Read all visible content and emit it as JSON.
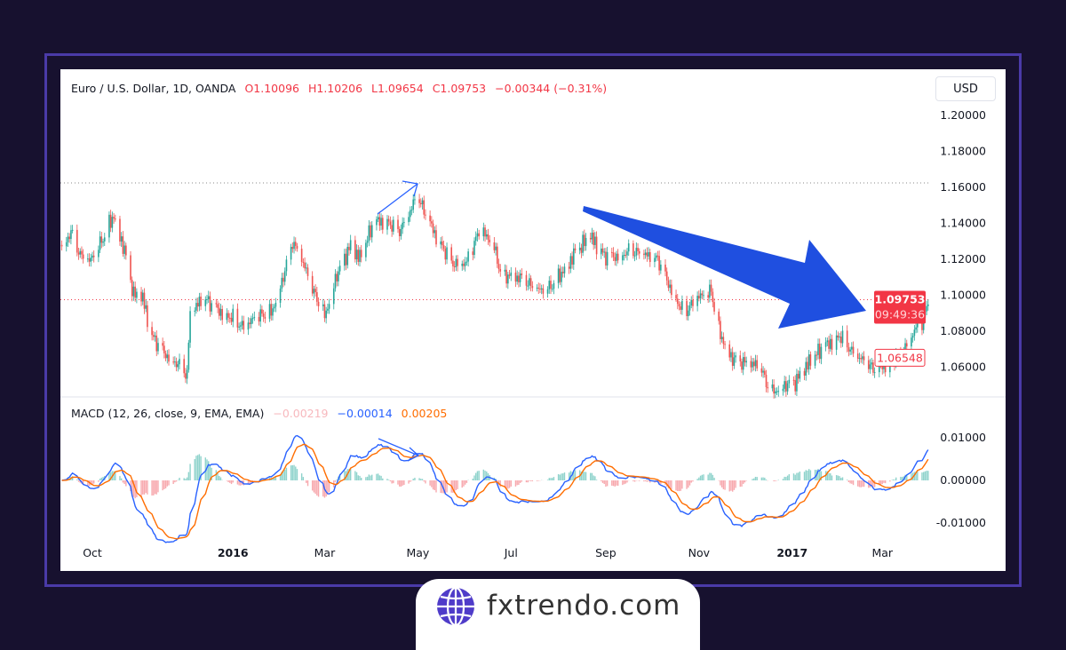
{
  "legend": {
    "symbol": "Euro / U.S. Dollar, 1D, OANDA",
    "open": "O1.10096",
    "high": "H1.10206",
    "low": "L1.09654",
    "close": "C1.09753",
    "change": "−0.00344 (−0.31%)"
  },
  "macd_legend": {
    "label": "MACD (12, 26, close, 9, EMA, EMA)",
    "histogram": "−0.00219",
    "macd": "−0.00014",
    "signal": "0.00205"
  },
  "currency": "USD",
  "price_axis": [
    "1.20000",
    "1.18000",
    "1.16000",
    "1.14000",
    "1.12000",
    "1.10000",
    "1.08000",
    "1.06000"
  ],
  "macd_axis": [
    "0.01000",
    "0.00000",
    "-0.01000"
  ],
  "time_axis": [
    {
      "label": "Oct",
      "bold": false,
      "date": "2015-10-01"
    },
    {
      "label": "2016",
      "bold": true,
      "date": "2016-01-01"
    },
    {
      "label": "Mar",
      "bold": false,
      "date": "2016-03-01"
    },
    {
      "label": "May",
      "bold": false,
      "date": "2016-05-01"
    },
    {
      "label": "Jul",
      "bold": false,
      "date": "2016-07-01"
    },
    {
      "label": "Sep",
      "bold": false,
      "date": "2016-09-01"
    },
    {
      "label": "Nov",
      "bold": false,
      "date": "2016-11-01"
    },
    {
      "label": "2017",
      "bold": true,
      "date": "2017-01-01"
    },
    {
      "label": "Mar",
      "bold": false,
      "date": "2017-03-01"
    }
  ],
  "badges": {
    "last_price": "1.09753",
    "countdown": "09:49:36",
    "level": "1.06548"
  },
  "logo_text": "fxtrendo.com",
  "colors": {
    "up": "#26a69a",
    "down": "#ef5350",
    "macd": "#2962ff",
    "signal": "#ff6d00",
    "arrow": "#1f4fe0",
    "frame": "#4a3aa8",
    "background": "#17112f"
  },
  "chart_data": {
    "type": "candlestick",
    "panes": [
      "price",
      "macd"
    ],
    "ylim": [
      1.045,
      1.205
    ],
    "macd_ylim": [
      -0.015,
      0.012
    ],
    "horizontal_lines": [
      1.1625,
      1.09753
    ],
    "closes": [
      [
        "2015-09-11",
        1.128
      ],
      [
        "2015-09-17",
        1.135
      ],
      [
        "2015-09-23",
        1.122
      ],
      [
        "2015-09-29",
        1.118
      ],
      [
        "2015-10-07",
        1.13
      ],
      [
        "2015-10-15",
        1.145
      ],
      [
        "2015-10-22",
        1.125
      ],
      [
        "2015-10-28",
        1.1
      ],
      [
        "2015-11-03",
        1.098
      ],
      [
        "2015-11-08",
        1.078
      ],
      [
        "2015-11-17",
        1.068
      ],
      [
        "2015-11-26",
        1.062
      ],
      [
        "2015-12-02",
        1.056
      ],
      [
        "2015-12-04",
        1.09
      ],
      [
        "2015-12-13",
        1.098
      ],
      [
        "2015-12-22",
        1.092
      ],
      [
        "2015-12-31",
        1.088
      ],
      [
        "2016-01-08",
        1.082
      ],
      [
        "2016-01-17",
        1.088
      ],
      [
        "2016-01-26",
        1.09
      ],
      [
        "2016-02-02",
        1.108
      ],
      [
        "2016-02-09",
        1.13
      ],
      [
        "2016-02-15",
        1.12
      ],
      [
        "2016-02-21",
        1.105
      ],
      [
        "2016-03-01",
        1.088
      ],
      [
        "2016-03-09",
        1.112
      ],
      [
        "2016-03-18",
        1.128
      ],
      [
        "2016-03-24",
        1.12
      ],
      [
        "2016-04-02",
        1.14
      ],
      [
        "2016-04-10",
        1.142
      ],
      [
        "2016-04-19",
        1.136
      ],
      [
        "2016-05-01",
        1.155
      ],
      [
        "2016-05-07",
        1.142
      ],
      [
        "2016-05-15",
        1.13
      ],
      [
        "2016-05-24",
        1.118
      ],
      [
        "2016-06-02",
        1.118
      ],
      [
        "2016-06-10",
        1.135
      ],
      [
        "2016-06-19",
        1.13
      ],
      [
        "2016-06-25",
        1.11
      ],
      [
        "2016-07-01",
        1.112
      ],
      [
        "2016-07-10",
        1.108
      ],
      [
        "2016-07-18",
        1.102
      ],
      [
        "2016-07-27",
        1.105
      ],
      [
        "2016-08-05",
        1.115
      ],
      [
        "2016-08-13",
        1.125
      ],
      [
        "2016-08-22",
        1.132
      ],
      [
        "2016-08-31",
        1.122
      ],
      [
        "2016-09-09",
        1.122
      ],
      [
        "2016-09-17",
        1.125
      ],
      [
        "2016-09-26",
        1.122
      ],
      [
        "2016-10-05",
        1.12
      ],
      [
        "2016-10-13",
        1.105
      ],
      [
        "2016-10-22",
        1.09
      ],
      [
        "2016-10-31",
        1.098
      ],
      [
        "2016-11-09",
        1.102
      ],
      [
        "2016-11-14",
        1.08
      ],
      [
        "2016-11-23",
        1.065
      ],
      [
        "2016-12-02",
        1.062
      ],
      [
        "2016-12-11",
        1.06
      ],
      [
        "2016-12-18",
        1.045
      ],
      [
        "2016-12-25",
        1.05
      ],
      [
        "2017-01-03",
        1.052
      ],
      [
        "2017-01-12",
        1.062
      ],
      [
        "2017-01-20",
        1.07
      ],
      [
        "2017-02-01",
        1.078
      ],
      [
        "2017-02-10",
        1.068
      ],
      [
        "2017-02-18",
        1.062
      ],
      [
        "2017-02-24",
        1.058
      ],
      [
        "2017-03-05",
        1.062
      ],
      [
        "2017-03-14",
        1.068
      ],
      [
        "2017-03-22",
        1.08
      ],
      [
        "2017-03-28",
        1.085
      ],
      [
        "2017-03-31",
        1.0975
      ]
    ]
  }
}
